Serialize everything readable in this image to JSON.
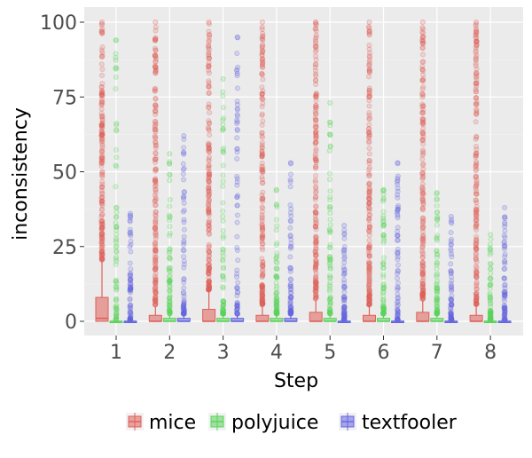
{
  "chart_data": {
    "type": "boxplot",
    "xlabel": "Step",
    "ylabel": "inconsistency",
    "categories": [
      "1",
      "2",
      "3",
      "4",
      "5",
      "6",
      "7",
      "8"
    ],
    "ylim": [
      -5,
      104
    ],
    "yticks": [
      0,
      25,
      50,
      75,
      100
    ],
    "ytick_labels": [
      "0",
      "25",
      "50",
      "75",
      "100"
    ],
    "legend_position": "bottom",
    "series": [
      {
        "name": "mice",
        "color": "#e0605a",
        "boxes": [
          {
            "q1": 0,
            "median": 1,
            "q3": 8,
            "whisker_high": 20,
            "outlier_max": 100
          },
          {
            "q1": 0,
            "median": 0,
            "q3": 2,
            "whisker_high": 5,
            "outlier_max": 100
          },
          {
            "q1": 0,
            "median": 0,
            "q3": 4,
            "whisker_high": 10,
            "outlier_max": 100
          },
          {
            "q1": 0,
            "median": 0,
            "q3": 2,
            "whisker_high": 5,
            "outlier_max": 100
          },
          {
            "q1": 0,
            "median": 0,
            "q3": 3,
            "whisker_high": 7,
            "outlier_max": 100
          },
          {
            "q1": 0,
            "median": 0,
            "q3": 2,
            "whisker_high": 5,
            "outlier_max": 100
          },
          {
            "q1": 0,
            "median": 0,
            "q3": 3,
            "whisker_high": 7,
            "outlier_max": 100
          },
          {
            "q1": 0,
            "median": 0,
            "q3": 2,
            "whisker_high": 5,
            "outlier_max": 100
          }
        ]
      },
      {
        "name": "polyjuice",
        "color": "#5bd35b",
        "boxes": [
          {
            "q1": 0,
            "median": 0,
            "q3": 0,
            "whisker_high": 0,
            "outlier_max": 94
          },
          {
            "q1": 0,
            "median": 0,
            "q3": 1,
            "whisker_high": 2,
            "outlier_max": 56
          },
          {
            "q1": 0,
            "median": 0,
            "q3": 1,
            "whisker_high": 2,
            "outlier_max": 81
          },
          {
            "q1": 0,
            "median": 0,
            "q3": 1,
            "whisker_high": 2,
            "outlier_max": 44
          },
          {
            "q1": 0,
            "median": 0,
            "q3": 1,
            "whisker_high": 2,
            "outlier_max": 73
          },
          {
            "q1": 0,
            "median": 0,
            "q3": 1,
            "whisker_high": 2,
            "outlier_max": 44
          },
          {
            "q1": 0,
            "median": 0,
            "q3": 1,
            "whisker_high": 2,
            "outlier_max": 43
          },
          {
            "q1": 0,
            "median": 0,
            "q3": 0,
            "whisker_high": 0,
            "outlier_max": 29
          }
        ]
      },
      {
        "name": "textfooler",
        "color": "#6666e0",
        "boxes": [
          {
            "q1": 0,
            "median": 0,
            "q3": 0,
            "whisker_high": 0,
            "outlier_max": 36
          },
          {
            "q1": 0,
            "median": 0,
            "q3": 1,
            "whisker_high": 2,
            "outlier_max": 62
          },
          {
            "q1": 0,
            "median": 0,
            "q3": 1,
            "whisker_high": 2,
            "outlier_max": 95
          },
          {
            "q1": 0,
            "median": 0,
            "q3": 1,
            "whisker_high": 2,
            "outlier_max": 53
          },
          {
            "q1": 0,
            "median": 0,
            "q3": 0,
            "whisker_high": 0,
            "outlier_max": 32
          },
          {
            "q1": 0,
            "median": 0,
            "q3": 0,
            "whisker_high": 0,
            "outlier_max": 53
          },
          {
            "q1": 0,
            "median": 0,
            "q3": 0,
            "whisker_high": 0,
            "outlier_max": 35
          },
          {
            "q1": 0,
            "median": 0,
            "q3": 0,
            "whisker_high": 0,
            "outlier_max": 38
          }
        ]
      }
    ]
  }
}
